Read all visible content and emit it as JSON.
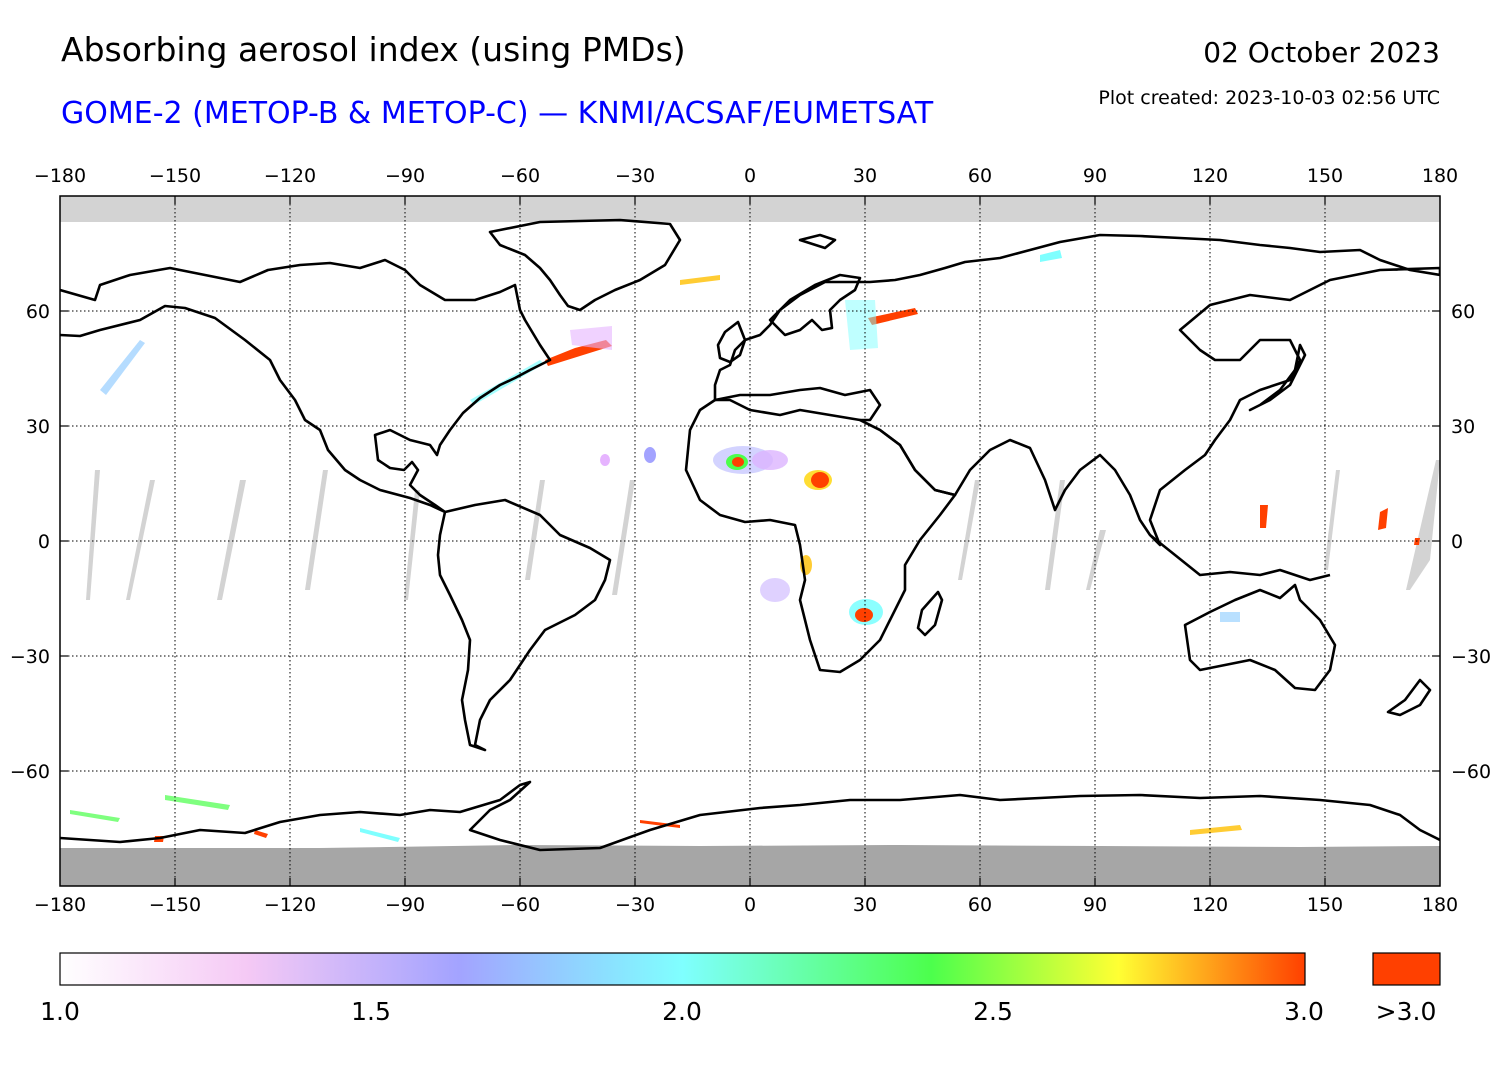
{
  "header": {
    "title": "Absorbing aerosol index (using PMDs)",
    "subtitle": "GOME-2 (METOP-B & METOP-C) — KNMI/ACSAF/EUMETSAT",
    "date": "02 October 2023",
    "created": "Plot created: 2023-10-03 02:56 UTC"
  },
  "map": {
    "projection": "equirectangular",
    "lon_range": [
      -180,
      180
    ],
    "lat_range": [
      -90,
      90
    ],
    "lon_ticks": [
      "−180",
      "−150",
      "−120",
      "−90",
      "−60",
      "−30",
      "0",
      "30",
      "60",
      "90",
      "120",
      "150",
      "180"
    ],
    "lat_ticks": [
      "60",
      "30",
      "0",
      "−30",
      "−60"
    ],
    "grid": "dotted",
    "no_data_color": "#d3d3d3",
    "polar_fill_color": "#a6a6a6"
  },
  "colorbar": {
    "tick_labels": [
      "1.0",
      "1.5",
      "2.0",
      "2.5",
      "3.0"
    ],
    "overflow_label": ">3.0",
    "overflow_color": "#ff4000",
    "stops": [
      "#ffffff",
      "#f5c9f5",
      "#a3a3ff",
      "#7fffff",
      "#4cff4c",
      "#ffff33",
      "#ff4000"
    ]
  }
}
